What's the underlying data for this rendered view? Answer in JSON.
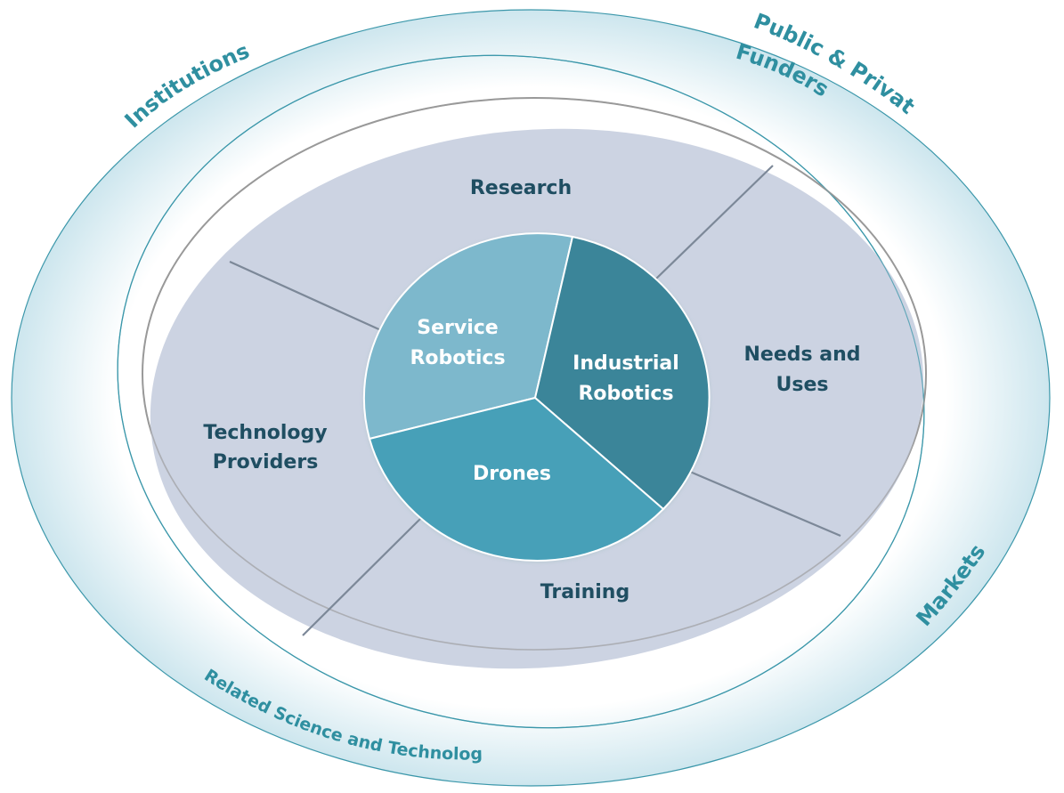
{
  "diagram": {
    "segments": {
      "research": "Research",
      "needs_line1": "Needs and",
      "needs_line2": "Uses",
      "tech_line1": "Technology",
      "tech_line2": "Providers",
      "training": "Training"
    },
    "core": {
      "service_line1": "Service",
      "service_line2": "Robotics",
      "industrial_line1": "Industrial",
      "industrial_line2": "Robotics",
      "drones": "Drones"
    },
    "outer": {
      "institutions": "Institutions",
      "funders_line1": "Public & Private",
      "funders_line2": "Funders",
      "markets": "Markets",
      "related": "Related Science and Technology"
    },
    "colors": {
      "ellipse_fill": "#c3ccdd",
      "service": "#7db8cc",
      "industrial": "#3a8599",
      "drones": "#47a0b8",
      "outer_stroke": "#3b97aa",
      "label_dark": "#1f4e62",
      "label_outer": "#2f8fa0"
    }
  }
}
